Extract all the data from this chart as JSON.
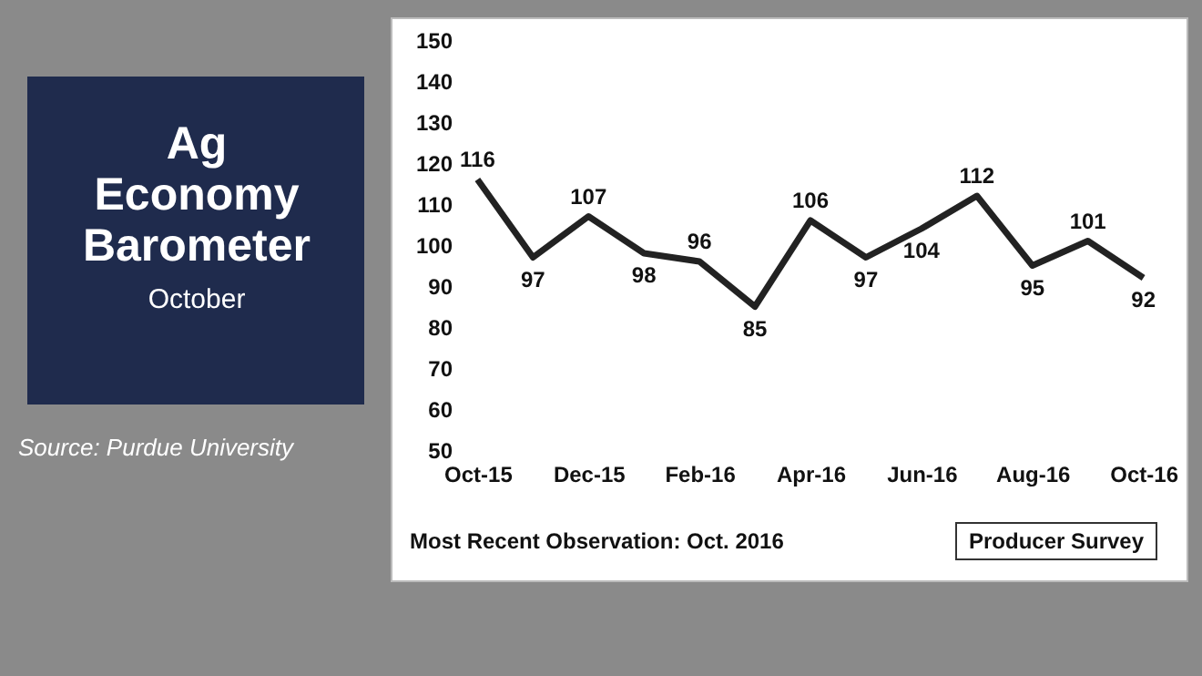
{
  "chart_data": {
    "type": "line",
    "title": "Ag Economy Barometer",
    "subtitle": "October",
    "categories": [
      "Oct-15",
      null,
      "Dec-15",
      null,
      "Feb-16",
      null,
      "Apr-16",
      null,
      "Jun-16",
      null,
      "Aug-16",
      null,
      "Oct-16"
    ],
    "series": [
      {
        "color": "#222222",
        "values": [
          116,
          97,
          107,
          98,
          96,
          85,
          106,
          97,
          104,
          112,
          95,
          101,
          92
        ]
      }
    ],
    "ylim": [
      50,
      150
    ],
    "yticks": [
      50,
      60,
      70,
      80,
      90,
      100,
      110,
      120,
      130,
      140,
      150
    ],
    "grid": false,
    "marker": "none",
    "line_style": "solid",
    "data_labels": true,
    "annotations": [
      "Source: Purdue University",
      "Most Recent Observation: Oct. 2016",
      "Producer Survey"
    ]
  }
}
